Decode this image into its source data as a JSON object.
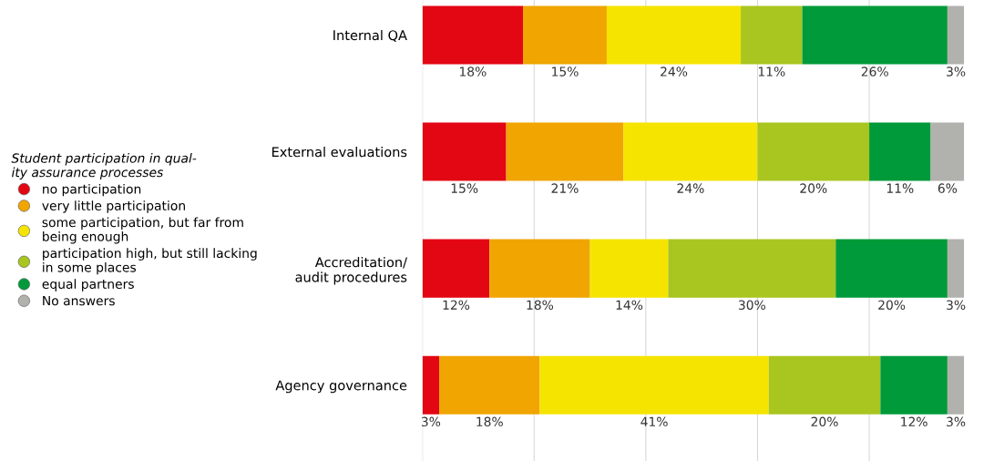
{
  "chart_data": {
    "type": "bar",
    "orientation": "horizontal",
    "stacked": true,
    "categories": [
      "Internal QA",
      "External evaluations",
      "Accreditation/\naudit procedures",
      "Agency governance"
    ],
    "series": [
      {
        "name": "no participation",
        "color": "#e30613",
        "values": [
          18,
          15,
          12,
          3
        ],
        "value_labels": [
          "18%",
          "15%",
          "12%",
          "3%"
        ]
      },
      {
        "name": "very little participation",
        "color": "#f0a500",
        "values": [
          15,
          21,
          18,
          18
        ],
        "value_labels": [
          "15%",
          "21%",
          "18%",
          "18%"
        ]
      },
      {
        "name": "some participation, but far from\nbeing enough",
        "color": "#f5e400",
        "values": [
          24,
          24,
          14,
          41
        ],
        "value_labels": [
          "24%",
          "24%",
          "14%",
          "41%"
        ]
      },
      {
        "name": "participation high, but still lacking\nin some places",
        "color": "#a9c520",
        "values": [
          11,
          20,
          30,
          20
        ],
        "value_labels": [
          "11%",
          "20%",
          "30%",
          "20%"
        ]
      },
      {
        "name": "equal partners",
        "color": "#009a3a",
        "values": [
          26,
          11,
          20,
          12
        ],
        "value_labels": [
          "26%",
          "11%",
          "20%",
          "12%"
        ]
      },
      {
        "name": "No answers",
        "color": "#b1b1ae",
        "values": [
          3,
          6,
          3,
          3
        ],
        "value_labels": [
          "3%",
          "6%",
          "3%",
          "3%"
        ]
      }
    ],
    "legend_title": "Student participation in qual-\nity assurance processes",
    "legend": "left",
    "grid": "x",
    "tick_labels": "y"
  }
}
